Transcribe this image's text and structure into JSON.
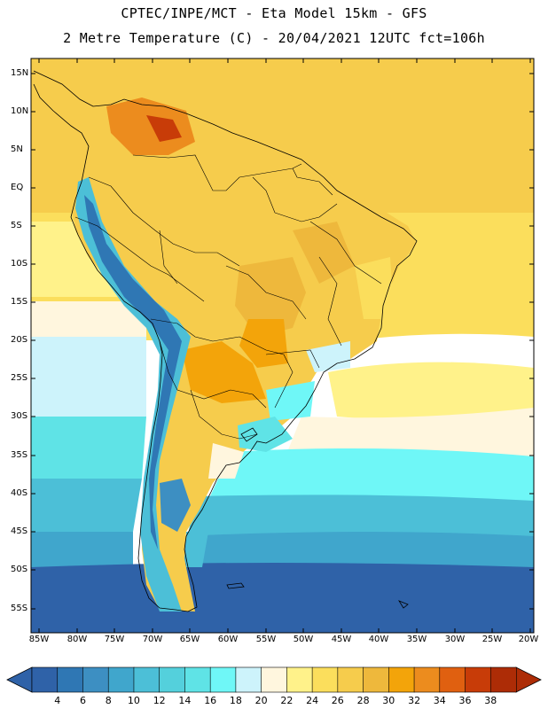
{
  "header": {
    "line1": "CPTEC/INPE/MCT -  Eta Model 15km - GFS",
    "line2": "2 Metre Temperature (C) - 20/04/2021 12UTC fct=106h"
  },
  "map": {
    "lat_ticks": [
      "15N",
      "10N",
      "5N",
      "EQ",
      "5S",
      "10S",
      "15S",
      "20S",
      "25S",
      "30S",
      "35S",
      "40S",
      "45S",
      "50S",
      "55S"
    ],
    "lon_ticks": [
      "85W",
      "80W",
      "75W",
      "70W",
      "65W",
      "60W",
      "55W",
      "50W",
      "45W",
      "40W",
      "35W",
      "30W",
      "25W",
      "20W"
    ]
  },
  "colorbar": {
    "labels": [
      "4",
      "6",
      "8",
      "10",
      "12",
      "14",
      "16",
      "18",
      "20",
      "22",
      "24",
      "26",
      "28",
      "30",
      "32",
      "34",
      "36",
      "38"
    ],
    "colors": [
      "#2f62a8",
      "#2f77b4",
      "#3d8fc2",
      "#40a6cc",
      "#4cbfd7",
      "#54d0dc",
      "#5fe3e6",
      "#6ff7f7",
      "#cdf3fb",
      "#fff6de",
      "#fff28a",
      "#fbde5c",
      "#f6cc4c",
      "#eeb83c",
      "#f3a40a",
      "#ec8c1e",
      "#e06010",
      "#c83c08",
      "#ad2c06"
    ],
    "left_arrow_color": "#2f62a8",
    "right_arrow_color": "#ad2c06"
  }
}
